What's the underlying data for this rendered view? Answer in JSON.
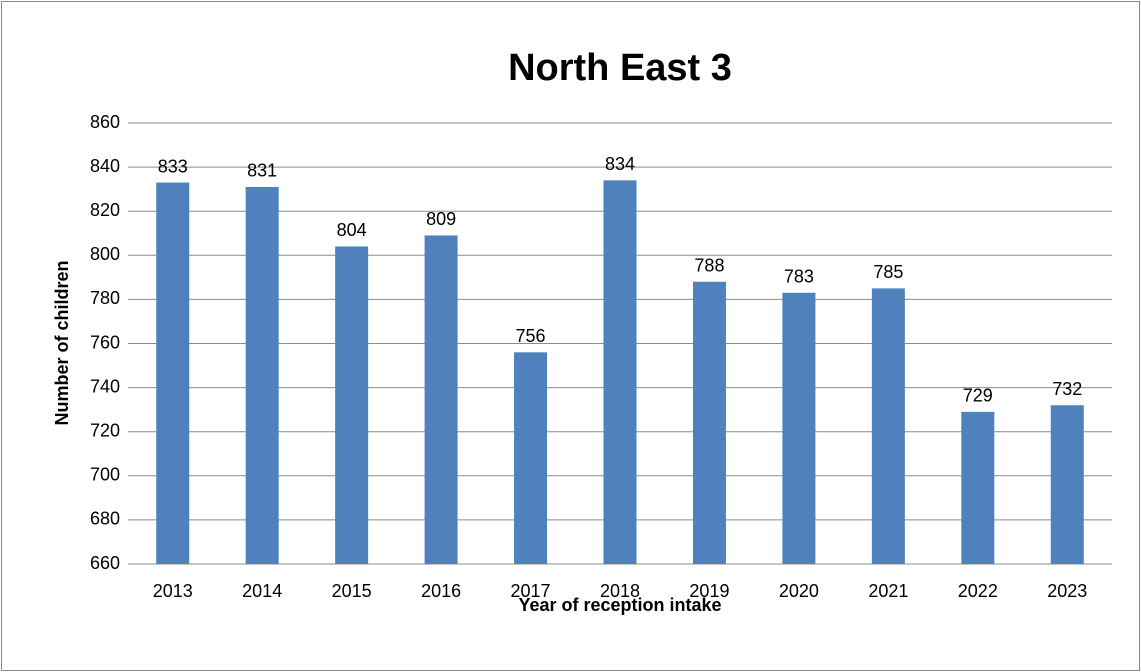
{
  "chart_data": {
    "type": "bar",
    "title": "North East 3",
    "x_label": "Year of reception intake",
    "y_label": "Number of children",
    "categories": [
      "2013",
      "2014",
      "2015",
      "2016",
      "2017",
      "2018",
      "2019",
      "2020",
      "2021",
      "2022",
      "2023"
    ],
    "values": [
      833,
      831,
      804,
      809,
      756,
      834,
      788,
      783,
      785,
      729,
      732
    ],
    "color": "#4f81bd",
    "ylim": [
      660,
      860
    ],
    "yticks": [
      660,
      680,
      700,
      720,
      740,
      760,
      780,
      800,
      820,
      840,
      860
    ],
    "grid": true
  }
}
